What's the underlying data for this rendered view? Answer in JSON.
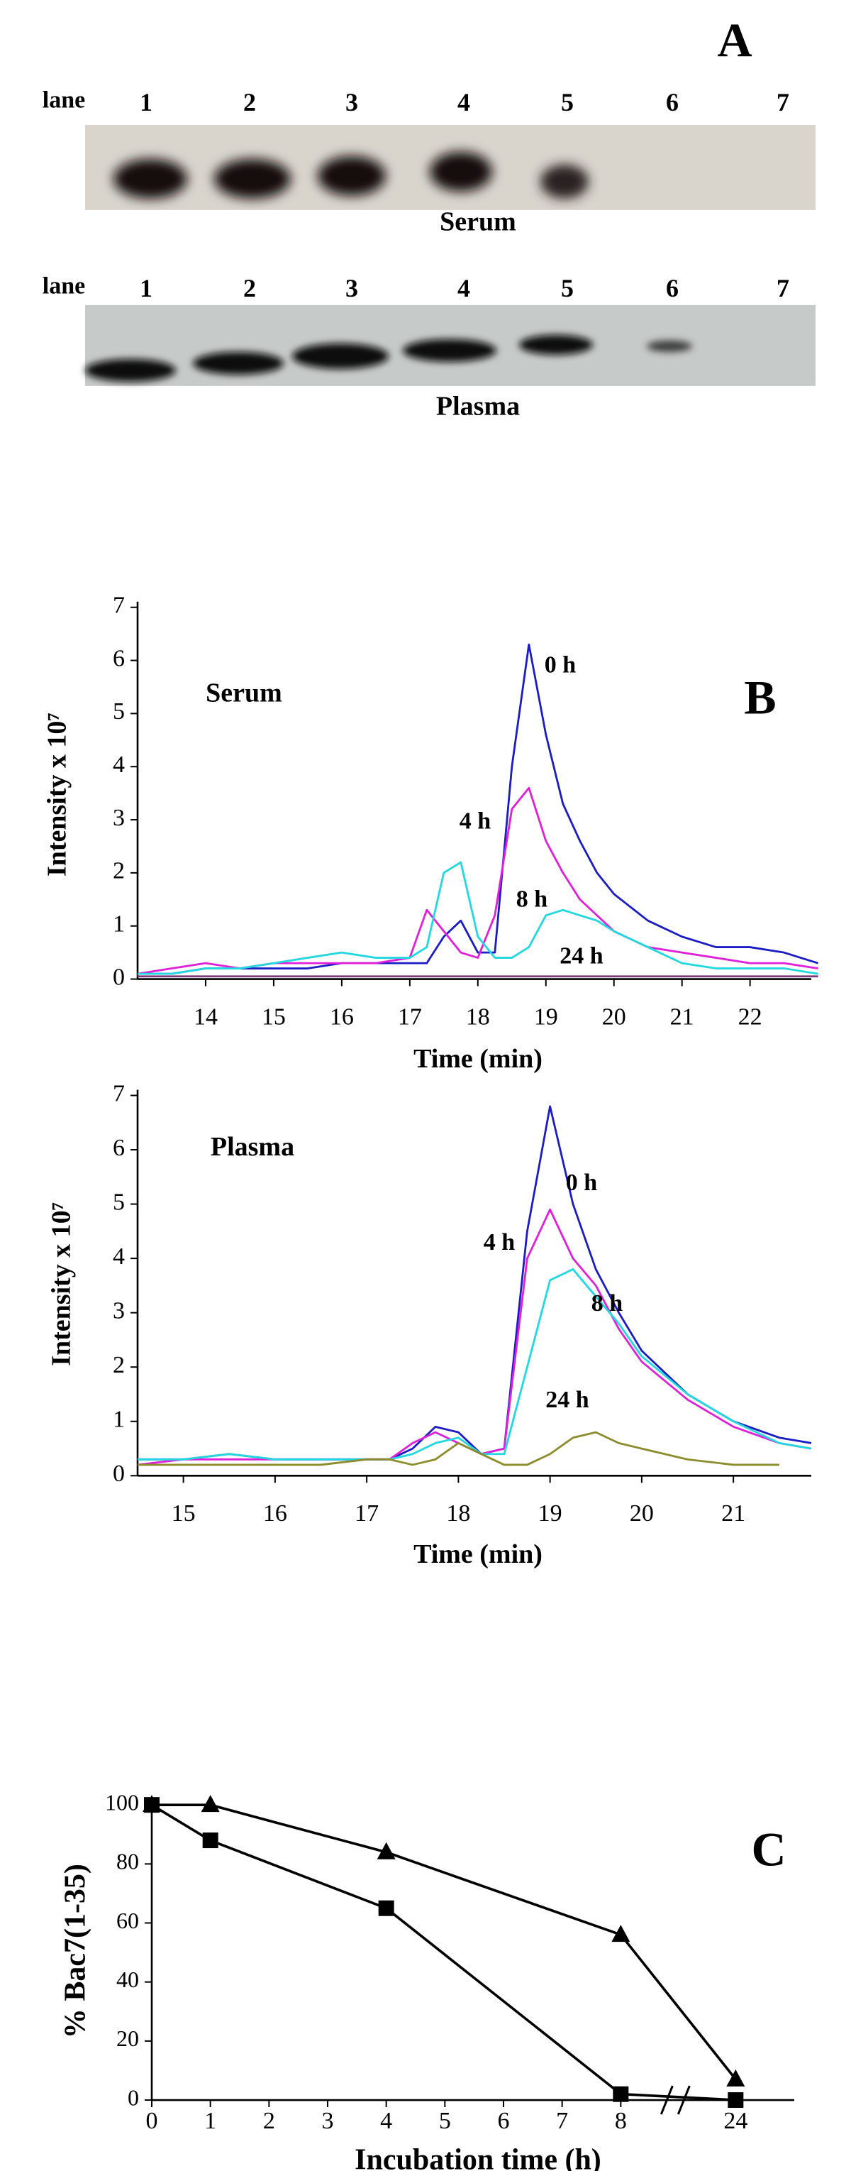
{
  "panel_a": {
    "label": "A",
    "gels": [
      {
        "lane_label": "lane",
        "lanes": [
          "1",
          "2",
          "3",
          "4",
          "5",
          "6",
          "7"
        ],
        "caption": "Serum"
      },
      {
        "lane_label": "lane",
        "lanes": [
          "1",
          "2",
          "3",
          "4",
          "5",
          "6",
          "7"
        ],
        "caption": "Plasma"
      }
    ]
  },
  "chart_data": [
    {
      "type": "line",
      "panel_label": "B",
      "inset_label": "Serum",
      "xlabel": "Time (min)",
      "ylabel": "Intensity x 10⁷",
      "x": [
        13,
        13.5,
        14,
        14.5,
        15,
        15.5,
        16,
        16.5,
        17,
        17.25,
        17.5,
        17.75,
        18,
        18.25,
        18.5,
        18.75,
        19,
        19.25,
        19.5,
        19.75,
        20,
        20.5,
        21,
        21.5,
        22,
        22.5,
        23
      ],
      "series": [
        {
          "name": "0 h",
          "color": "#1c1cc4",
          "values": [
            0.1,
            0.1,
            0.2,
            0.2,
            0.2,
            0.2,
            0.3,
            0.3,
            0.3,
            0.3,
            0.8,
            1.1,
            0.5,
            0.5,
            4.0,
            6.3,
            4.6,
            3.3,
            2.6,
            2.0,
            1.6,
            1.1,
            0.8,
            0.6,
            0.6,
            0.5,
            0.3
          ]
        },
        {
          "name": "4 h",
          "color": "#e020d8",
          "values": [
            0.1,
            0.2,
            0.3,
            0.2,
            0.3,
            0.3,
            0.3,
            0.3,
            0.4,
            1.3,
            0.9,
            0.5,
            0.4,
            1.2,
            3.2,
            3.6,
            2.6,
            2.0,
            1.5,
            1.2,
            0.9,
            0.6,
            0.5,
            0.4,
            0.3,
            0.3,
            0.2
          ]
        },
        {
          "name": "8 h",
          "color": "#22d8e0",
          "values": [
            0.1,
            0.1,
            0.2,
            0.2,
            0.3,
            0.4,
            0.5,
            0.4,
            0.4,
            0.6,
            2.0,
            2.2,
            0.8,
            0.4,
            0.4,
            0.6,
            1.2,
            1.3,
            1.2,
            1.1,
            0.9,
            0.6,
            0.3,
            0.2,
            0.2,
            0.2,
            0.1
          ]
        },
        {
          "name": "24 h",
          "color": "#7a3a7a",
          "values": [
            0.05,
            0.05,
            0.05,
            0.05,
            0.05,
            0.05,
            0.05,
            0.05,
            0.05,
            0.05,
            0.05,
            0.05,
            0.05,
            0.05,
            0.05,
            0.05,
            0.05,
            0.05,
            0.05,
            0.05,
            0.05,
            0.05,
            0.05,
            0.05,
            0.05,
            0.05,
            0.05
          ]
        }
      ],
      "xlim": [
        13,
        22.9
      ],
      "xticks": [
        14,
        15,
        16,
        17,
        18,
        19,
        20,
        21,
        22
      ],
      "ylim": [
        0,
        7
      ],
      "yticks": [
        0,
        1,
        2,
        3,
        4,
        5,
        6,
        7
      ]
    },
    {
      "type": "line",
      "inset_label": "Plasma",
      "xlabel": "Time (min)",
      "ylabel": "Intensity x 10⁷",
      "x": [
        14.5,
        15,
        15.5,
        16,
        16.5,
        17,
        17.25,
        17.5,
        17.75,
        18,
        18.25,
        18.5,
        18.75,
        19,
        19.25,
        19.5,
        19.75,
        20,
        20.5,
        21,
        21.5,
        21.85
      ],
      "series": [
        {
          "name": "0 h",
          "color": "#1c1cc4",
          "values": [
            0.3,
            0.3,
            0.4,
            0.3,
            0.3,
            0.3,
            0.3,
            0.5,
            0.9,
            0.8,
            0.4,
            0.5,
            4.5,
            6.8,
            5.0,
            3.8,
            3.0,
            2.3,
            1.5,
            1.0,
            0.7,
            0.6
          ]
        },
        {
          "name": "4 h",
          "color": "#e020d8",
          "values": [
            0.2,
            0.3,
            0.3,
            0.3,
            0.3,
            0.3,
            0.3,
            0.6,
            0.8,
            0.6,
            0.4,
            0.5,
            4.0,
            4.9,
            4.0,
            3.5,
            2.7,
            2.1,
            1.4,
            0.9,
            0.6,
            0.5
          ]
        },
        {
          "name": "8 h",
          "color": "#22d8e0",
          "values": [
            0.3,
            0.3,
            0.4,
            0.3,
            0.3,
            0.3,
            0.3,
            0.4,
            0.6,
            0.7,
            0.4,
            0.4,
            2.0,
            3.6,
            3.8,
            3.3,
            2.8,
            2.2,
            1.5,
            1.0,
            0.6,
            0.5
          ]
        },
        {
          "name": "24 h",
          "color": "#8c8c2c",
          "values": [
            0.2,
            0.2,
            0.2,
            0.2,
            0.2,
            0.3,
            0.3,
            0.2,
            0.3,
            0.6,
            0.4,
            0.2,
            0.2,
            0.4,
            0.7,
            0.8,
            0.6,
            0.5,
            0.3,
            0.2,
            0.2,
            null
          ]
        }
      ],
      "xlim": [
        14.5,
        21.85
      ],
      "xticks": [
        15,
        16,
        17,
        18,
        19,
        20,
        21
      ],
      "ylim": [
        0,
        7
      ],
      "yticks": [
        0,
        1,
        2,
        3,
        4,
        5,
        6,
        7
      ]
    },
    {
      "type": "line",
      "panel_label": "C",
      "xlabel": "Incubation time (h)",
      "ylabel": "% Bac7(1-35)",
      "x": [
        0,
        1,
        4,
        8,
        24
      ],
      "series": [
        {
          "color": "#000000",
          "marker": "triangle",
          "values": [
            100,
            100,
            84,
            56,
            7
          ]
        },
        {
          "color": "#000000",
          "marker": "square",
          "values": [
            100,
            88,
            65,
            2,
            0
          ]
        }
      ],
      "xlim": [
        0,
        25
      ],
      "xticks": [
        0,
        1,
        2,
        3,
        4,
        5,
        6,
        7,
        8,
        24
      ],
      "axis_break": true,
      "ylim": [
        0,
        100
      ],
      "yticks": [
        0,
        20,
        40,
        60,
        80,
        100
      ]
    }
  ]
}
